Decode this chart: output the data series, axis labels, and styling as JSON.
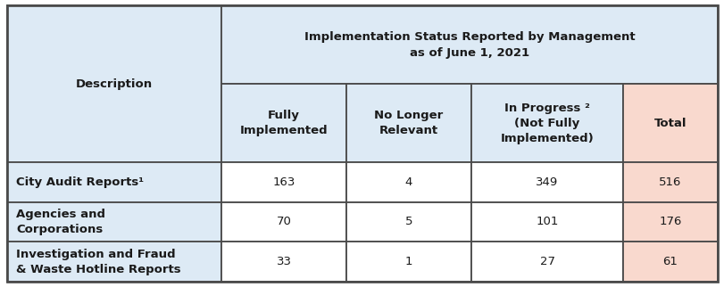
{
  "title_line1": "Implementation Status Reported by Management",
  "title_line2": "as of June 1, 2021",
  "col_headers": [
    "Description",
    "Fully\nImplemented",
    "No Longer\nRelevant",
    "In Progress ²\n(Not Fully\nImplemented)",
    "Total"
  ],
  "rows": [
    {
      "label": "City Audit Reports¹",
      "values": [
        "163",
        "4",
        "349",
        "516"
      ]
    },
    {
      "label": "Agencies and\nCorporations",
      "values": [
        "70",
        "5",
        "101",
        "176"
      ]
    },
    {
      "label": "Investigation and Fraud\n& Waste Hotline Reports",
      "values": [
        "33",
        "1",
        "27",
        "61"
      ]
    }
  ],
  "header_bg": "#DDEAF5",
  "row_bg_desc": "#DDEAF5",
  "row_bg_data": "#FFFFFF",
  "total_col_bg": "#F9D9CE",
  "border_color": "#4A4A4A",
  "text_color": "#1A1A1A",
  "fig_width": 8.12,
  "fig_height": 3.22,
  "dpi": 100
}
